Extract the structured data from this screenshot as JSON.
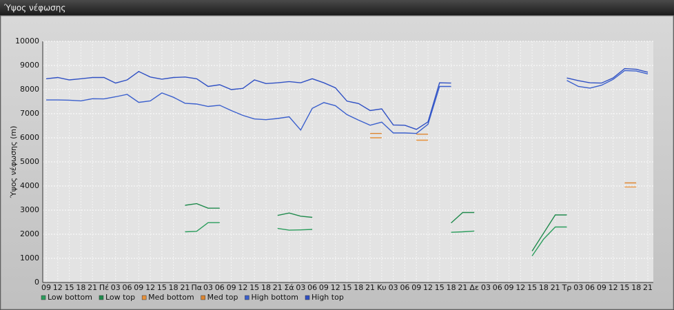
{
  "chart_data": {
    "type": "line",
    "window_title": "Ύψος νέφωσης",
    "y_label": "Ύψος νέφωσης (m)",
    "categories": [
      "09",
      "12",
      "15",
      "18",
      "21",
      "Πέ",
      "03",
      "06",
      "09",
      "12",
      "15",
      "18",
      "21",
      "Πα",
      "03",
      "06",
      "09",
      "12",
      "15",
      "18",
      "21",
      "Σά",
      "03",
      "06",
      "09",
      "12",
      "15",
      "18",
      "21",
      "Κυ",
      "03",
      "06",
      "09",
      "12",
      "15",
      "18",
      "21",
      "Δε",
      "03",
      "06",
      "09",
      "12",
      "15",
      "18",
      "21",
      "Τρ",
      "03",
      "06",
      "09",
      "12",
      "15",
      "18",
      "21"
    ],
    "ylim": [
      0,
      10000
    ],
    "yticks": [
      0,
      1000,
      2000,
      3000,
      4000,
      5000,
      6000,
      7000,
      8000,
      9000,
      10000
    ],
    "grid": true,
    "series": [
      {
        "name": "Low bottom",
        "color": "#2a9d5c",
        "values": [
          null,
          null,
          null,
          null,
          null,
          null,
          null,
          null,
          null,
          null,
          null,
          null,
          2100,
          2120,
          2480,
          2480,
          null,
          null,
          null,
          null,
          2240,
          2170,
          2180,
          2200,
          null,
          null,
          null,
          null,
          null,
          null,
          null,
          null,
          null,
          null,
          null,
          2080,
          2100,
          2130,
          null,
          null,
          null,
          null,
          1100,
          1800,
          2300,
          2300,
          null,
          null,
          null,
          null,
          null,
          null,
          null
        ]
      },
      {
        "name": "Low top",
        "color": "#1f8a4c",
        "values": [
          null,
          null,
          null,
          null,
          null,
          null,
          null,
          null,
          null,
          null,
          null,
          null,
          3200,
          3270,
          3080,
          3080,
          null,
          null,
          null,
          null,
          2780,
          2880,
          2750,
          2700,
          null,
          null,
          null,
          null,
          null,
          null,
          null,
          null,
          null,
          null,
          null,
          2470,
          2900,
          2900,
          null,
          null,
          null,
          null,
          1300,
          2050,
          2800,
          2800,
          null,
          null,
          null,
          null,
          null,
          null,
          null
        ]
      },
      {
        "name": "Med bottom",
        "color": "#e8913a",
        "values": [
          null,
          null,
          null,
          null,
          null,
          null,
          null,
          null,
          null,
          null,
          null,
          null,
          null,
          null,
          null,
          null,
          null,
          null,
          null,
          null,
          null,
          null,
          null,
          null,
          null,
          null,
          null,
          null,
          6000,
          6000,
          null,
          null,
          5900,
          5900,
          null,
          null,
          null,
          null,
          null,
          null,
          null,
          null,
          null,
          null,
          null,
          null,
          null,
          null,
          null,
          null,
          3960,
          3960,
          null
        ]
      },
      {
        "name": "Med top",
        "color": "#dd8530",
        "values": [
          null,
          null,
          null,
          null,
          null,
          null,
          null,
          null,
          null,
          null,
          null,
          null,
          null,
          null,
          null,
          null,
          null,
          null,
          null,
          null,
          null,
          null,
          null,
          null,
          null,
          null,
          null,
          null,
          6180,
          6180,
          null,
          null,
          6150,
          6150,
          null,
          null,
          null,
          null,
          null,
          null,
          null,
          null,
          null,
          null,
          null,
          null,
          null,
          null,
          null,
          null,
          4130,
          4130,
          null
        ]
      },
      {
        "name": "High bottom",
        "color": "#3a5fcd",
        "values": [
          7570,
          7570,
          7560,
          7530,
          7620,
          7610,
          7700,
          7800,
          7470,
          7530,
          7860,
          7680,
          7430,
          7400,
          7300,
          7350,
          7130,
          6930,
          6780,
          6750,
          6800,
          6870,
          6320,
          7220,
          7460,
          7330,
          6960,
          6730,
          6520,
          6650,
          6200,
          6200,
          6180,
          6560,
          8130,
          8130,
          null,
          null,
          null,
          null,
          null,
          null,
          null,
          null,
          null,
          8380,
          8130,
          8060,
          8180,
          8420,
          8790,
          8770,
          8650
        ]
      },
      {
        "name": "High top",
        "color": "#2f50c4",
        "values": [
          8450,
          8500,
          8400,
          8450,
          8500,
          8500,
          8270,
          8400,
          8750,
          8520,
          8430,
          8500,
          8520,
          8450,
          8130,
          8200,
          8000,
          8050,
          8400,
          8250,
          8280,
          8330,
          8280,
          8450,
          8280,
          8070,
          7520,
          7420,
          7130,
          7200,
          6530,
          6520,
          6350,
          6660,
          8280,
          8270,
          null,
          null,
          null,
          null,
          null,
          null,
          null,
          null,
          null,
          8480,
          8370,
          8280,
          8270,
          8480,
          8870,
          8840,
          8720
        ]
      }
    ]
  }
}
